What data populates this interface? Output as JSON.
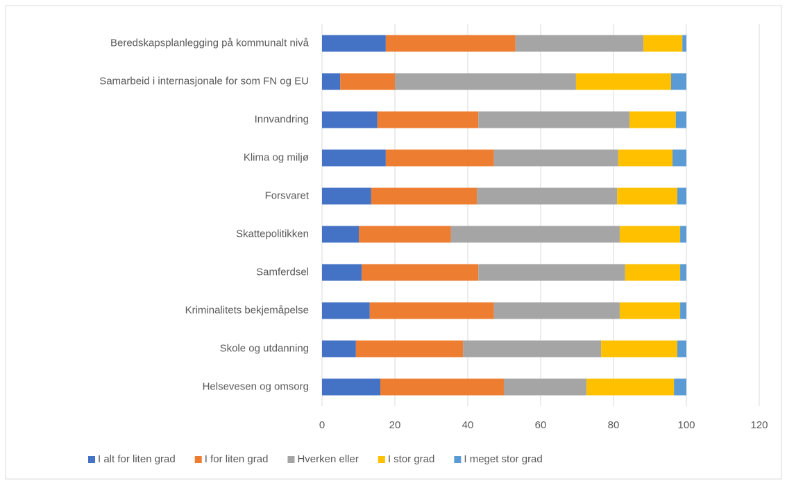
{
  "chart_data": {
    "type": "stacked_barh",
    "categories": [
      "Beredskapsplanlegging på kommunalt nivå",
      "Samarbeid i internasjonale for som FN og EU",
      "Innvandring",
      "Klima og miljø",
      "Forsvaret",
      "Skattepolitikken",
      "Samferdsel",
      "Kriminalitets bekjemåpelse",
      "Skole og utdanning",
      "Helsevesen og omsorg"
    ],
    "series": [
      {
        "name": "I alt for liten grad",
        "color": "#4472c4",
        "values": [
          17.5,
          5.0,
          15.2,
          17.5,
          13.5,
          10.1,
          10.9,
          13.1,
          9.3,
          16.0
        ]
      },
      {
        "name": "I for liten grad",
        "color": "#ed7d31",
        "values": [
          35.6,
          15.0,
          27.7,
          29.7,
          29.0,
          25.3,
          32.0,
          34.1,
          29.4,
          33.9
        ]
      },
      {
        "name": "Hverken eller",
        "color": "#a5a5a5",
        "values": [
          35.1,
          49.7,
          41.5,
          34.1,
          38.5,
          46.3,
          40.3,
          34.5,
          37.9,
          22.7
        ]
      },
      {
        "name": "I stor grad",
        "color": "#ffc000",
        "values": [
          10.7,
          26.1,
          12.7,
          14.9,
          16.5,
          16.6,
          15.1,
          16.6,
          20.9,
          24.0
        ]
      },
      {
        "name": "I meget stor grad",
        "color": "#5b9bd5",
        "values": [
          1.1,
          4.2,
          2.9,
          3.8,
          2.5,
          1.7,
          1.7,
          1.7,
          2.5,
          3.4
        ]
      }
    ],
    "xlim": [
      0,
      120
    ],
    "xticks": [
      0,
      20,
      40,
      60,
      80,
      100,
      120
    ],
    "grid": true,
    "legend": "bottom"
  }
}
